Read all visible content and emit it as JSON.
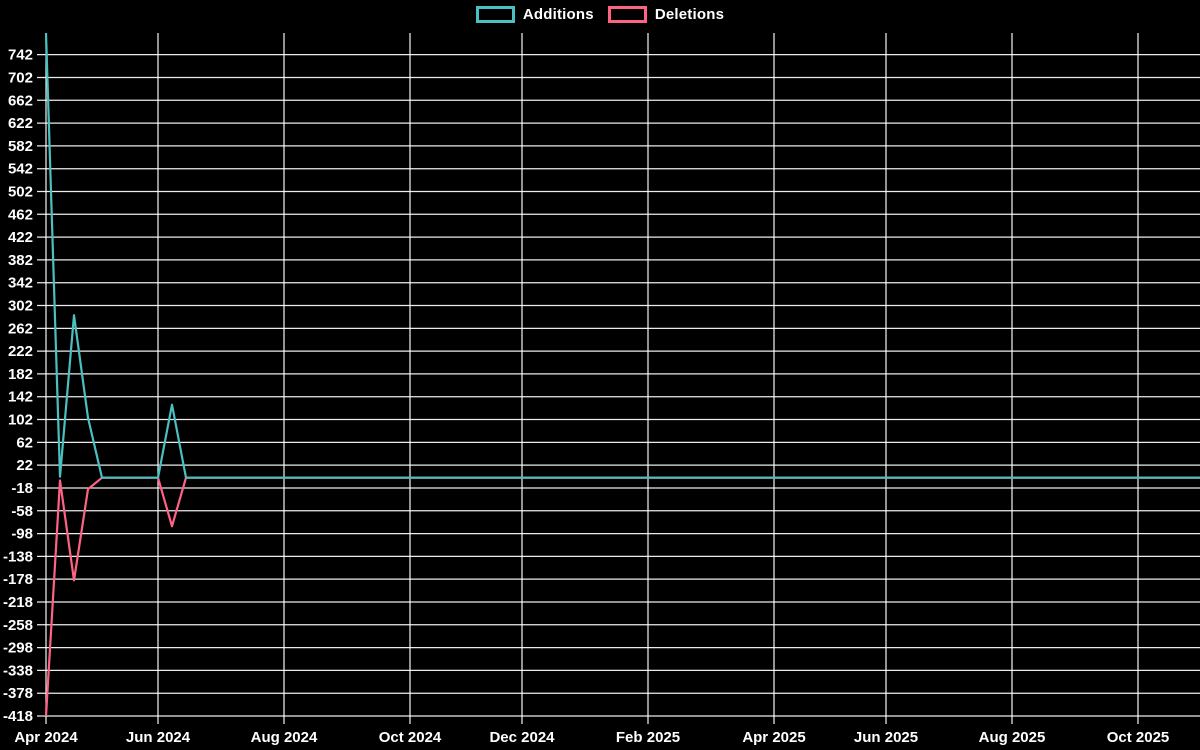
{
  "chart_data": {
    "type": "line",
    "title": "",
    "description": "Weekly code additions and deletions",
    "legend_position": "top-center",
    "background_color": "#000000",
    "grid": true,
    "grid_color": "#ffffff",
    "text_color": "#ffffff",
    "y_axis": {
      "min": -418,
      "max": 780,
      "tick_step": 40,
      "tick_labels": [
        742,
        702,
        662,
        622,
        582,
        542,
        502,
        462,
        422,
        382,
        342,
        302,
        262,
        222,
        182,
        142,
        102,
        62,
        22,
        -18,
        -58,
        -98,
        -138,
        -178,
        -218,
        -258,
        -298,
        -338,
        -378,
        -418
      ]
    },
    "x_axis": {
      "unit": "week",
      "tick_labels": [
        "Apr 2024",
        "Jun 2024",
        "Aug 2024",
        "Oct 2024",
        "Dec 2024",
        "Feb 2025",
        "Apr 2025",
        "Jun 2025",
        "Aug 2025",
        "Oct 2025"
      ],
      "tick_week_indices": [
        0,
        8,
        17,
        26,
        34,
        43,
        52,
        60,
        69,
        78
      ],
      "total_weeks": 83
    },
    "series": [
      {
        "name": "Additions",
        "color": "#4bc0c0",
        "interpolation": "linear between listed vertices; value is 0 at all unlisted weeks",
        "points_by_week_index": [
          [
            0,
            780
          ],
          [
            1,
            2
          ],
          [
            2,
            285
          ],
          [
            3,
            105
          ],
          [
            4,
            0
          ],
          [
            8,
            0
          ],
          [
            9,
            128
          ],
          [
            10,
            0
          ],
          [
            82,
            0
          ]
        ]
      },
      {
        "name": "Deletions",
        "color": "#ff6384",
        "interpolation": "linear between listed vertices; value is 0 at all unlisted weeks",
        "points_by_week_index": [
          [
            0,
            -418
          ],
          [
            1,
            -5
          ],
          [
            2,
            -180
          ],
          [
            3,
            -20
          ],
          [
            4,
            0
          ],
          [
            8,
            0
          ],
          [
            9,
            -85
          ],
          [
            10,
            0
          ],
          [
            82,
            0
          ]
        ]
      }
    ]
  }
}
